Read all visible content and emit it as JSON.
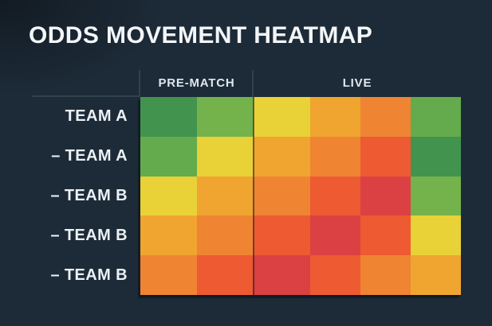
{
  "title": "ODDS MOVEMENT HEATMAP",
  "colors": {
    "bg": "#1d2b38",
    "title-text": "#f3f6f8",
    "header-text": "#dfe7ee",
    "label-text": "#ecf1f5",
    "rule": "#30404c",
    "divider": "rgba(13,19,25,0.55)"
  },
  "chart_data": {
    "type": "heatmap",
    "title": "ODDS MOVEMENT HEATMAP",
    "legend": "none",
    "grid": "off",
    "column_groups": [
      {
        "label": "PRE-MATCH",
        "span": 2
      },
      {
        "label": "LIVE",
        "span": 4
      }
    ],
    "rows": [
      "TEAM A",
      "– TEAM A",
      "– TEAM B",
      "– TEAM B",
      "– TEAM B"
    ],
    "palette": {
      "green-dark": "#42934e",
      "green-mid": "#63ab4c",
      "green-light": "#74b24b",
      "yellow": "#e9d138",
      "orange-light": "#efa52f",
      "orange-deep": "#ef8433",
      "red-orange": "#ee5a32",
      "red": "#db4142"
    },
    "cells": [
      [
        "green-dark",
        "green-light",
        "yellow",
        "orange-light",
        "orange-deep",
        "green-mid"
      ],
      [
        "green-mid",
        "yellow",
        "orange-light",
        "orange-deep",
        "red-orange",
        "green-dark"
      ],
      [
        "yellow",
        "orange-light",
        "orange-deep",
        "red-orange",
        "red",
        "green-light"
      ],
      [
        "orange-light",
        "orange-deep",
        "red-orange",
        "red",
        "red-orange",
        "yellow"
      ],
      [
        "orange-deep",
        "red-orange",
        "red",
        "red-orange",
        "orange-deep",
        "orange-light"
      ]
    ]
  }
}
